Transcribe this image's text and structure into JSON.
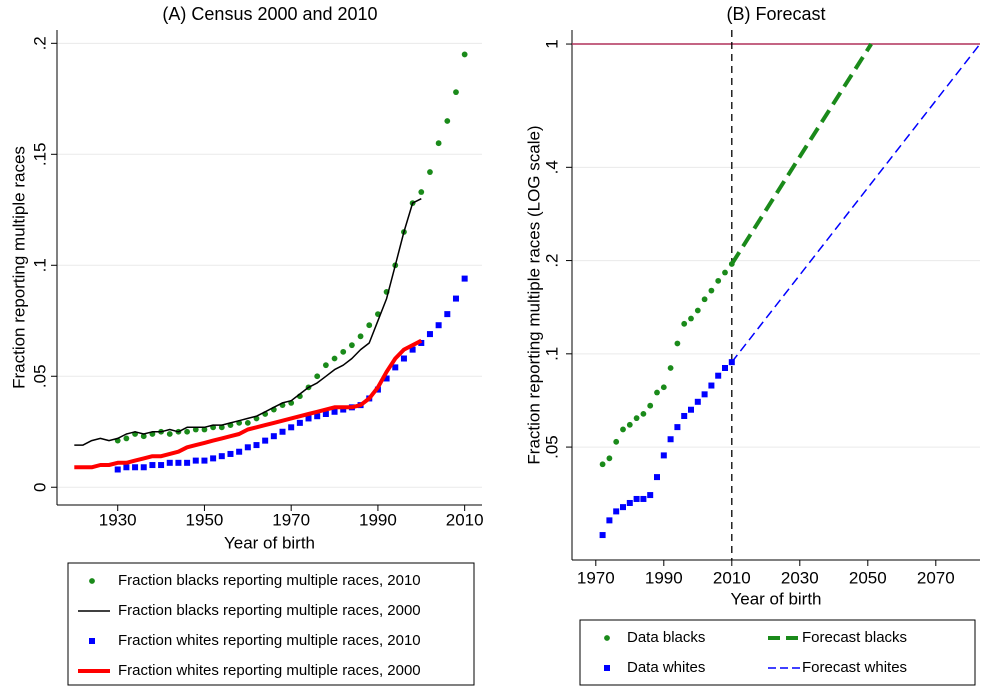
{
  "chart_data": [
    {
      "type": "line",
      "title": "(A) Census 2000 and 2010",
      "xlabel": "Year of birth",
      "ylabel": "Fraction reporting multiple races",
      "x": [
        1920,
        1922,
        1924,
        1926,
        1928,
        1930,
        1932,
        1934,
        1936,
        1938,
        1940,
        1942,
        1944,
        1946,
        1948,
        1950,
        1952,
        1954,
        1956,
        1958,
        1960,
        1962,
        1964,
        1966,
        1968,
        1970,
        1972,
        1974,
        1976,
        1978,
        1980,
        1982,
        1984,
        1986,
        1988,
        1990,
        1992,
        1994,
        1996,
        1998,
        2000,
        2002,
        2004,
        2006,
        2008,
        2010
      ],
      "xlim": [
        1916,
        2014
      ],
      "xticks": [
        1930,
        1950,
        1970,
        1990,
        2010
      ],
      "ylim": [
        -0.008,
        0.206
      ],
      "yticks": [
        {
          "value": 0,
          "label": "0"
        },
        {
          "value": 0.05,
          "label": ".05"
        },
        {
          "value": 0.1,
          "label": ".1"
        },
        {
          "value": 0.15,
          "label": ".15"
        },
        {
          "value": 0.2,
          "label": ".2"
        }
      ],
      "grid": true,
      "series": [
        {
          "name": "Fraction blacks reporting multiple races, 2010",
          "color": "#1a8a1a",
          "marker": "circle",
          "values": [
            null,
            null,
            null,
            null,
            null,
            0.021,
            0.022,
            0.024,
            0.023,
            0.024,
            0.025,
            0.024,
            0.025,
            0.025,
            0.026,
            0.026,
            0.027,
            0.027,
            0.028,
            0.029,
            0.029,
            0.031,
            0.033,
            0.035,
            0.037,
            0.038,
            0.041,
            0.045,
            0.05,
            0.055,
            0.058,
            0.061,
            0.064,
            0.068,
            0.073,
            0.078,
            0.088,
            0.1,
            0.115,
            0.128,
            0.133,
            0.142,
            0.155,
            0.165,
            0.178,
            0.195
          ]
        },
        {
          "name": "Fraction blacks reporting multiple races, 2000",
          "color": "#000000",
          "line_width": 1.5,
          "values": [
            0.019,
            0.019,
            0.021,
            0.022,
            0.021,
            0.022,
            0.024,
            0.025,
            0.024,
            0.025,
            0.025,
            0.026,
            0.025,
            0.027,
            0.027,
            0.027,
            0.028,
            0.028,
            0.029,
            0.03,
            0.031,
            0.032,
            0.034,
            0.036,
            0.038,
            0.039,
            0.042,
            0.045,
            0.047,
            0.05,
            0.053,
            0.055,
            0.058,
            0.062,
            0.065,
            0.075,
            0.085,
            0.1,
            0.115,
            0.128,
            0.13,
            null,
            null,
            null,
            null,
            null
          ]
        },
        {
          "name": "Fraction whites reporting multiple races, 2010",
          "color": "#0000ff",
          "marker": "square",
          "values": [
            null,
            null,
            null,
            null,
            null,
            0.008,
            0.009,
            0.009,
            0.009,
            0.01,
            0.01,
            0.011,
            0.011,
            0.011,
            0.012,
            0.012,
            0.013,
            0.014,
            0.015,
            0.016,
            0.018,
            0.019,
            0.021,
            0.023,
            0.025,
            0.027,
            0.029,
            0.031,
            0.032,
            0.033,
            0.034,
            0.035,
            0.036,
            0.037,
            0.04,
            0.044,
            0.049,
            0.054,
            0.058,
            0.062,
            0.065,
            0.069,
            0.073,
            0.078,
            0.085,
            0.094
          ]
        },
        {
          "name": "Fraction whites reporting multiple races, 2000",
          "color": "#ff0000",
          "line_width": 4,
          "values": [
            0.009,
            0.009,
            0.009,
            0.01,
            0.01,
            0.011,
            0.011,
            0.012,
            0.013,
            0.014,
            0.014,
            0.015,
            0.016,
            0.018,
            0.019,
            0.02,
            0.021,
            0.022,
            0.023,
            0.024,
            0.026,
            0.027,
            0.028,
            0.029,
            0.03,
            0.031,
            0.032,
            0.033,
            0.034,
            0.035,
            0.036,
            0.036,
            0.036,
            0.037,
            0.04,
            0.045,
            0.052,
            0.058,
            0.062,
            0.064,
            0.066,
            null,
            null,
            null,
            null,
            null
          ]
        }
      ]
    },
    {
      "type": "line",
      "title": "(B) Forecast",
      "xlabel": "Year of birth",
      "ylabel": "Fraction reporting multiple races (LOG scale)",
      "ylog": true,
      "xlim": [
        1963,
        2083
      ],
      "xticks": [
        1970,
        1990,
        2010,
        2030,
        2050,
        2070
      ],
      "ylim": [
        0.0216,
        1.11
      ],
      "yticks": [
        {
          "value": 0.05,
          "label": ".05"
        },
        {
          "value": 0.1,
          "label": ".1"
        },
        {
          "value": 0.2,
          "label": ".2"
        },
        {
          "value": 0.4,
          "label": ".4"
        },
        1
      ],
      "grid": true,
      "hline": 1,
      "hline_color": "#b0305a",
      "vline": 2010,
      "series": [
        {
          "name": "Data blacks",
          "color": "#1a8a1a",
          "marker": "circle",
          "x": [
            1972,
            1974,
            1976,
            1978,
            1980,
            1982,
            1984,
            1986,
            1988,
            1990,
            1992,
            1994,
            1996,
            1998,
            2000,
            2002,
            2004,
            2006,
            2008,
            2010
          ],
          "values": [
            0.044,
            0.046,
            0.052,
            0.057,
            0.059,
            0.062,
            0.064,
            0.068,
            0.075,
            0.078,
            0.09,
            0.108,
            0.125,
            0.13,
            0.138,
            0.15,
            0.16,
            0.172,
            0.183,
            0.195
          ]
        },
        {
          "name": "Data whites",
          "color": "#0000ff",
          "marker": "square",
          "x": [
            1972,
            1974,
            1976,
            1978,
            1980,
            1982,
            1984,
            1986,
            1988,
            1990,
            1992,
            1994,
            1996,
            1998,
            2000,
            2002,
            2004,
            2006,
            2008,
            2010
          ],
          "values": [
            0.026,
            0.029,
            0.031,
            0.032,
            0.033,
            0.034,
            0.034,
            0.035,
            0.04,
            0.047,
            0.053,
            0.058,
            0.063,
            0.066,
            0.07,
            0.074,
            0.079,
            0.085,
            0.09,
            0.094
          ]
        },
        {
          "name": "Forecast blacks",
          "color": "#1a8a1a",
          "line_width": 4,
          "dashed": true,
          "x": [
            2010,
            2051
          ],
          "values": [
            0.195,
            1
          ]
        },
        {
          "name": "Forecast whites",
          "color": "#0000ff",
          "line_width": 1.5,
          "dashed": true,
          "x": [
            2010,
            2083
          ],
          "values": [
            0.094,
            1
          ]
        }
      ]
    }
  ]
}
